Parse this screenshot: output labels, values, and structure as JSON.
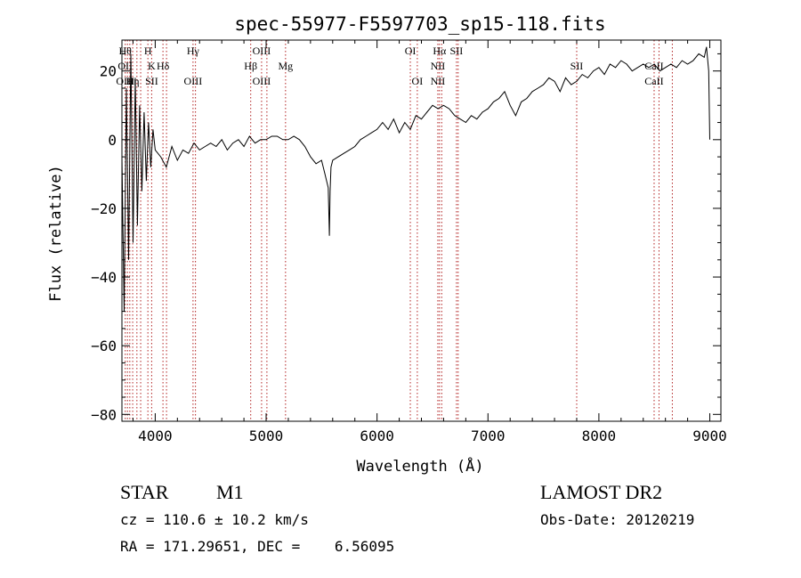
{
  "chart_data": {
    "type": "line",
    "title": "spec-55977-F5597703_sp15-118.fits",
    "xlabel": "Wavelength (Å)",
    "ylabel": "Flux (relative)",
    "xlim": [
      3700,
      9100
    ],
    "ylim": [
      -82,
      29
    ],
    "x_ticks": [
      4000,
      5000,
      6000,
      7000,
      8000,
      9000
    ],
    "y_ticks": [
      -80,
      -60,
      -40,
      -20,
      0,
      20
    ],
    "grid": false,
    "line_color": "#000000",
    "marker_color": "#b22222",
    "series": [
      {
        "x": [
          3700,
          3720,
          3740,
          3760,
          3780,
          3800,
          3820,
          3840,
          3860,
          3880,
          3900,
          3920,
          3940,
          3960,
          3980,
          4000,
          4050,
          4100,
          4150,
          4200,
          4250,
          4300,
          4350,
          4400,
          4450,
          4500,
          4550,
          4600,
          4650,
          4700,
          4750,
          4800,
          4850,
          4900,
          4950,
          5000,
          5050,
          5100,
          5150,
          5200,
          5250,
          5300,
          5350,
          5400,
          5450,
          5500,
          5530,
          5560,
          5570,
          5577,
          5585,
          5600,
          5650,
          5700,
          5750,
          5800,
          5850,
          5900,
          5950,
          6000,
          6050,
          6100,
          6150,
          6200,
          6250,
          6300,
          6350,
          6400,
          6450,
          6500,
          6550,
          6600,
          6650,
          6700,
          6750,
          6800,
          6850,
          6900,
          6950,
          7000,
          7050,
          7100,
          7150,
          7200,
          7250,
          7300,
          7350,
          7400,
          7450,
          7500,
          7550,
          7600,
          7650,
          7700,
          7750,
          7800,
          7850,
          7900,
          7950,
          8000,
          8050,
          8100,
          8150,
          8200,
          8250,
          8300,
          8350,
          8400,
          8450,
          8500,
          8550,
          8600,
          8650,
          8700,
          8750,
          8800,
          8850,
          8900,
          8950,
          8970,
          8990,
          9000
        ],
        "y": [
          -5,
          -50,
          15,
          -35,
          25,
          -30,
          18,
          -25,
          10,
          -15,
          8,
          -12,
          5,
          -8,
          3,
          -3,
          -5,
          -8,
          -2,
          -6,
          -3,
          -4,
          -1,
          -3,
          -2,
          -1,
          -2,
          0,
          -3,
          -1,
          0,
          -2,
          1,
          -1,
          0,
          0,
          1,
          1,
          0,
          0,
          1,
          0,
          -2,
          -5,
          -7,
          -6,
          -10,
          -14,
          -28,
          -15,
          -8,
          -6,
          -5,
          -4,
          -3,
          -2,
          0,
          1,
          2,
          3,
          5,
          3,
          6,
          2,
          5,
          3,
          7,
          6,
          8,
          10,
          9,
          10,
          9,
          7,
          6,
          5,
          7,
          6,
          8,
          9,
          11,
          12,
          14,
          10,
          7,
          11,
          12,
          14,
          15,
          16,
          18,
          17,
          14,
          18,
          16,
          17,
          19,
          18,
          20,
          21,
          19,
          22,
          21,
          23,
          22,
          20,
          21,
          22,
          21,
          22,
          20,
          21,
          22,
          21,
          23,
          22,
          23,
          25,
          24,
          27,
          20,
          0
        ]
      }
    ],
    "lines": [
      {
        "x": 3730,
        "top": "Hθ",
        "mid": "OII",
        "low": "OIII"
      },
      {
        "x": 3750,
        "top": "",
        "mid": "",
        "low": ""
      },
      {
        "x": 3771,
        "top": "",
        "mid": "",
        "low": ""
      },
      {
        "x": 3797,
        "top": "",
        "mid": "",
        "low": "Hη"
      },
      {
        "x": 3835,
        "top": "",
        "mid": "",
        "low": ""
      },
      {
        "x": 3869,
        "top": "",
        "mid": "",
        "low": ""
      },
      {
        "x": 3934,
        "top": "H",
        "mid": "",
        "low": ""
      },
      {
        "x": 3968,
        "top": "",
        "mid": "K",
        "low": "SII"
      },
      {
        "x": 4070,
        "top": "",
        "mid": "Hδ",
        "low": ""
      },
      {
        "x": 4102,
        "top": "",
        "mid": "",
        "low": ""
      },
      {
        "x": 4341,
        "top": "Hγ",
        "mid": "",
        "low": "OIII"
      },
      {
        "x": 4363,
        "top": "",
        "mid": "",
        "low": ""
      },
      {
        "x": 4861,
        "top": "",
        "mid": "Hβ",
        "low": ""
      },
      {
        "x": 4959,
        "top": "OIII",
        "mid": "",
        "low": "OIII"
      },
      {
        "x": 5007,
        "top": "",
        "mid": "",
        "low": ""
      },
      {
        "x": 5175,
        "top": "",
        "mid": "Mg",
        "low": ""
      },
      {
        "x": 6300,
        "top": "OI",
        "mid": "",
        "low": ""
      },
      {
        "x": 6363,
        "top": "",
        "mid": "",
        "low": "OI"
      },
      {
        "x": 6548,
        "top": "",
        "mid": "NII",
        "low": "NII"
      },
      {
        "x": 6563,
        "top": "Hα",
        "mid": "",
        "low": ""
      },
      {
        "x": 6583,
        "top": "",
        "mid": "",
        "low": ""
      },
      {
        "x": 6716,
        "top": "SII",
        "mid": "",
        "low": ""
      },
      {
        "x": 6731,
        "top": "",
        "mid": "",
        "low": ""
      },
      {
        "x": 7800,
        "top": "",
        "mid": "SII",
        "low": ""
      },
      {
        "x": 8498,
        "top": "",
        "mid": "CaII",
        "low": "CaII"
      },
      {
        "x": 8542,
        "top": "",
        "mid": "",
        "low": ""
      },
      {
        "x": 8662,
        "top": "",
        "mid": "",
        "low": ""
      }
    ]
  },
  "info": {
    "object_class": "STAR",
    "subclass": "M1",
    "survey": "LAMOST DR2",
    "cz": "cz = 110.6 ± 10.2 km/s",
    "obs_date": "Obs-Date: 20120219",
    "coords": "RA = 171.29651, DEC =    6.56095"
  }
}
